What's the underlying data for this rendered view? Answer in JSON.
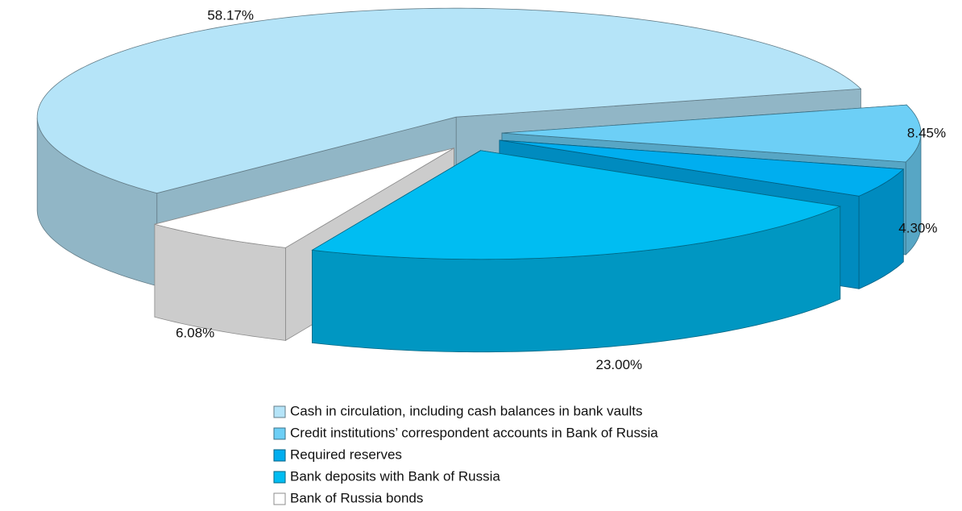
{
  "chart_data": {
    "type": "pie",
    "labels": [
      "Cash in circulation, including cash balances in bank vaults",
      "Credit institutions’ correspondent accounts in Bank of Russia",
      "Required reserves",
      "Bank deposits with Bank of Russia",
      "Bank of Russia  bonds"
    ],
    "values": [
      58.17,
      8.45,
      4.3,
      23.0,
      6.08
    ],
    "value_labels": [
      "58.17%",
      "8.45%",
      "4.30%",
      "23.00%",
      "6.08%"
    ],
    "colors": [
      "#b5e4f8",
      "#6dcff6",
      "#00aeef",
      "#00bdf2",
      "#ffffff"
    ],
    "legend": "bottom"
  }
}
